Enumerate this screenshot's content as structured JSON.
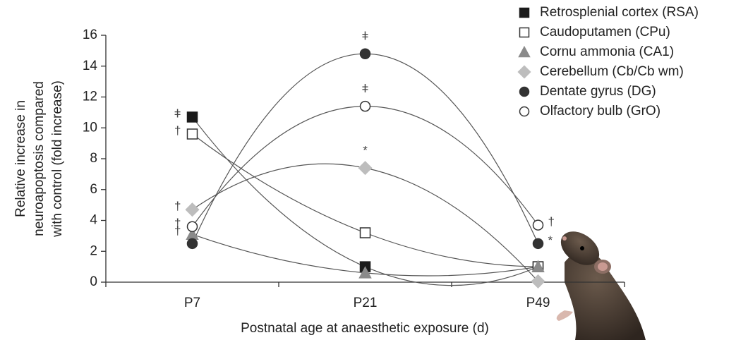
{
  "chart_data": {
    "type": "line",
    "categories": [
      "P7",
      "P21",
      "P49"
    ],
    "xlabel": "Postnatal age at anaesthetic exposure (d)",
    "ylabel": [
      "Relative increase in",
      "neuroapoptosis compared",
      "with control (fold increase)"
    ],
    "ylim": [
      0,
      16
    ],
    "yticks": [
      0,
      2,
      4,
      6,
      8,
      10,
      12,
      14,
      16
    ],
    "legend": "top-right",
    "series": [
      {
        "name": "Retrosplenial cortex (RSA)",
        "color": "#1a1a1a",
        "marker": "square",
        "filled": true,
        "values": [
          10.7,
          1.0,
          1.0
        ],
        "point_labels": [
          "ǂ",
          null,
          null
        ]
      },
      {
        "name": "Caudoputamen (CPu)",
        "color": "#333333",
        "marker": "square",
        "filled": false,
        "values": [
          9.6,
          3.2,
          1.0
        ],
        "point_labels": [
          "†",
          null,
          null
        ]
      },
      {
        "name": "Cornu ammonia (CA1)",
        "color": "#8a8a8a",
        "marker": "triangle",
        "filled": true,
        "values": [
          3.1,
          0.6,
          1.0
        ],
        "point_labels": [
          "†",
          null,
          null
        ]
      },
      {
        "name": "Cerebellum (Cb/Cb wm)",
        "color": "#bdbdbd",
        "marker": "diamond",
        "filled": true,
        "values": [
          4.7,
          7.4,
          0.05
        ],
        "point_labels": [
          "†",
          "*",
          null
        ]
      },
      {
        "name": "Dentate gyrus (DG)",
        "color": "#333333",
        "marker": "circle",
        "filled": true,
        "values": [
          2.5,
          14.8,
          2.5
        ],
        "point_labels": [
          null,
          "ǂ",
          "*"
        ]
      },
      {
        "name": "Olfactory bulb (GrO)",
        "color": "#333333",
        "marker": "circle",
        "filled": false,
        "values": [
          3.6,
          11.4,
          3.7
        ],
        "point_labels": [
          "†",
          "ǂ",
          "†"
        ]
      }
    ]
  }
}
